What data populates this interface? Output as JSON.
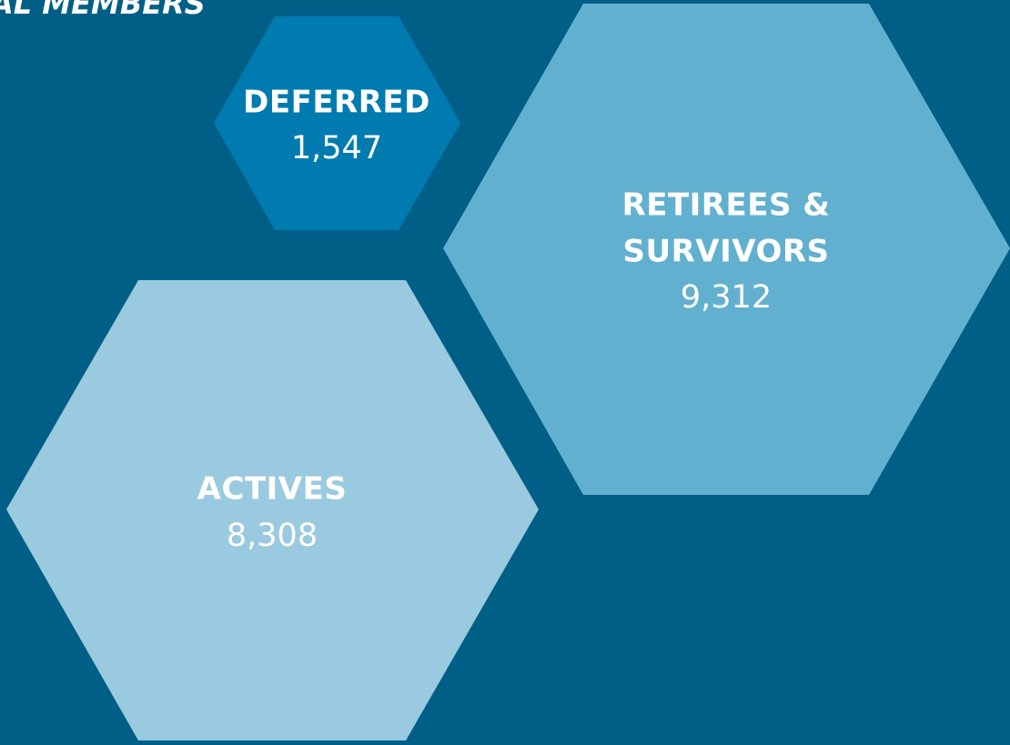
{
  "title": "AL MEMBERS",
  "groups": [
    {
      "label": [
        "DEFERRED"
      ],
      "value": "1,547"
    },
    {
      "label": [
        "RETIREES &",
        "SURVIVORS"
      ],
      "value": "9,312"
    },
    {
      "label": [
        "ACTIVES"
      ],
      "value": "8,308"
    }
  ]
}
